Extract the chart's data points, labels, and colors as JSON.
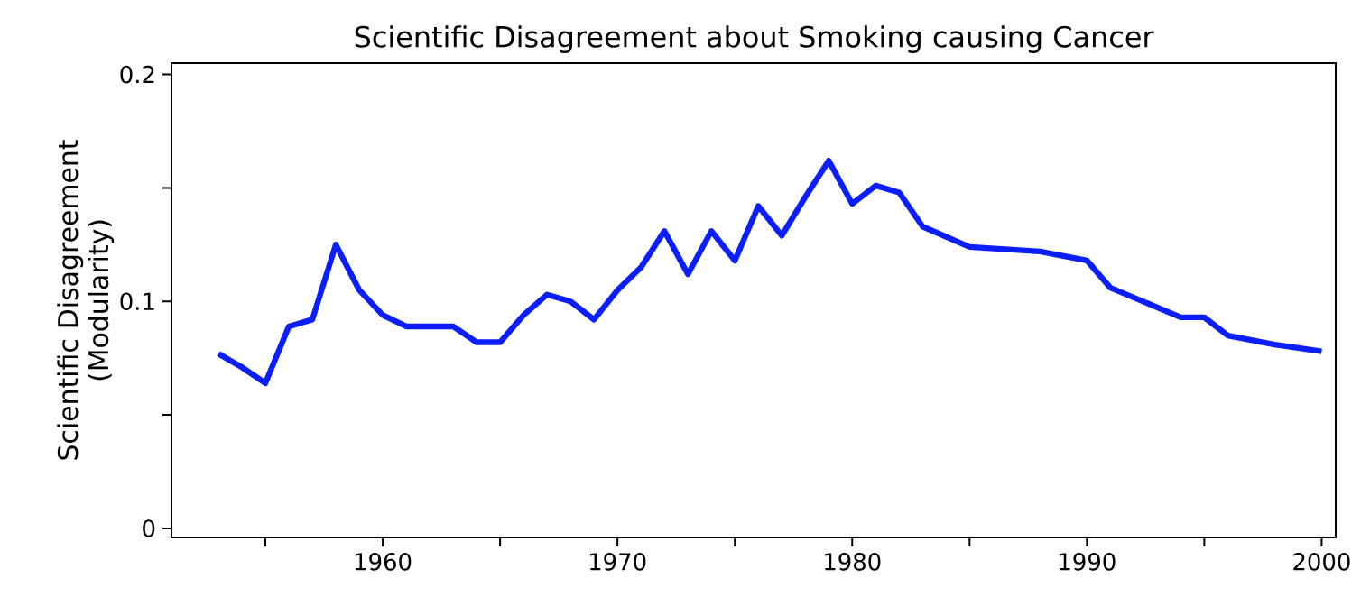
{
  "chart_data": {
    "type": "line",
    "title": "Scientific Disagreement about Smoking causing Cancer",
    "ylabel": "Scientific Disagreement (Modularity)",
    "x": [
      1953,
      1954,
      1955,
      1956,
      1957,
      1958,
      1959,
      1960,
      1961,
      1962,
      1963,
      1964,
      1965,
      1966,
      1967,
      1968,
      1969,
      1970,
      1971,
      1972,
      1973,
      1974,
      1975,
      1976,
      1977,
      1978,
      1979,
      1980,
      1981,
      1982,
      1983,
      1985,
      1988,
      1990,
      1991,
      1994,
      1995,
      1996,
      1998,
      2000
    ],
    "series": [
      {
        "color": "#0a1eff",
        "values": [
          0.077,
          0.071,
          0.064,
          0.089,
          0.092,
          0.125,
          0.105,
          0.094,
          0.089,
          0.089,
          0.089,
          0.082,
          0.082,
          0.094,
          0.103,
          0.1,
          0.092,
          0.105,
          0.115,
          0.131,
          0.112,
          0.131,
          0.118,
          0.142,
          0.129,
          0.146,
          0.162,
          0.143,
          0.151,
          0.148,
          0.133,
          0.124,
          0.122,
          0.118,
          0.106,
          0.093,
          0.093,
          0.085,
          0.081,
          0.078
        ]
      }
    ],
    "xlim": [
      1951,
      2000.6
    ],
    "ylim": [
      -0.004,
      0.205
    ],
    "xticks": [
      {
        "value": 1955,
        "label": null
      },
      1960,
      {
        "value": 1965,
        "label": null
      },
      1970,
      {
        "value": 1975,
        "label": null
      },
      1980,
      {
        "value": 1985,
        "label": null
      },
      1990,
      {
        "value": 1995,
        "label": null
      },
      2000
    ],
    "yticks": [
      0,
      {
        "value": 0.05,
        "label": null
      },
      0.1,
      {
        "value": 0.15,
        "label": null
      },
      0.2
    ],
    "grid": false,
    "marker": "none",
    "line_style": "solid"
  }
}
